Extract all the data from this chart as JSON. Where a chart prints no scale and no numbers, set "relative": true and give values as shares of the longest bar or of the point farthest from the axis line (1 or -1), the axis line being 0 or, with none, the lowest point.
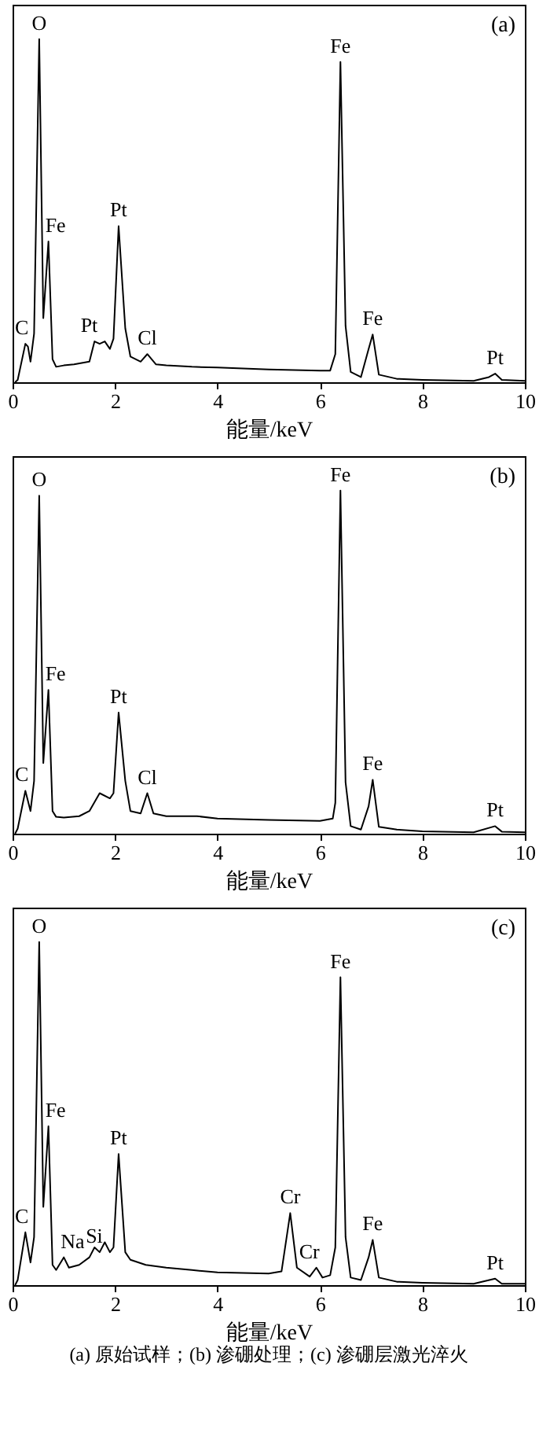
{
  "chart_data": [
    {
      "type": "line",
      "title": "(a)",
      "xlabel": "能量/keV",
      "relative": true,
      "xlim": [
        0,
        10
      ],
      "xticks": [
        0,
        2,
        4,
        6,
        8,
        10
      ],
      "tick_labels": "x",
      "x": [
        0.05,
        0.1,
        0.25,
        0.3,
        0.35,
        0.42,
        0.52,
        0.6,
        0.7,
        0.78,
        0.85,
        1.0,
        1.2,
        1.5,
        1.6,
        1.7,
        1.8,
        1.9,
        1.97,
        2.07,
        2.2,
        2.3,
        2.5,
        2.63,
        2.8,
        3.0,
        3.5,
        4.0,
        5.0,
        6.0,
        6.2,
        6.3,
        6.4,
        6.5,
        6.6,
        6.8,
        6.95,
        7.03,
        7.15,
        7.5,
        8.0,
        9.0,
        9.3,
        9.42,
        9.55,
        10
      ],
      "series": [
        {
          "color": "#000000",
          "values": [
            0,
            0.007,
            0.112,
            0.104,
            0.06,
            0.142,
            1,
            0.187,
            0.41,
            0.067,
            0.045,
            0.049,
            0.052,
            0.06,
            0.119,
            0.112,
            0.119,
            0.097,
            0.127,
            0.455,
            0.157,
            0.075,
            0.06,
            0.082,
            0.052,
            0.049,
            0.045,
            0.043,
            0.037,
            0.034,
            0.034,
            0.082,
            0.933,
            0.164,
            0.03,
            0.015,
            0.097,
            0.139,
            0.022,
            0.01,
            0.007,
            0.004,
            0.015,
            0.025,
            0.007,
            0.004
          ]
        }
      ],
      "annotations": [
        {
          "text": "C",
          "x": 0.25,
          "y": 0.112
        },
        {
          "text": "O",
          "x": 0.52,
          "y": 1
        },
        {
          "text": "Fe",
          "x": 0.7,
          "y": 0.41
        },
        {
          "text": "Pt",
          "x": 1.6,
          "y": 0.119
        },
        {
          "text": "Pt",
          "x": 2.07,
          "y": 0.455
        },
        {
          "text": "Cl",
          "x": 2.63,
          "y": 0.082
        },
        {
          "text": "Fe",
          "x": 6.4,
          "y": 0.933
        },
        {
          "text": "Fe",
          "x": 7.03,
          "y": 0.139
        },
        {
          "text": "Pt",
          "x": 9.42,
          "y": 0.025
        }
      ]
    },
    {
      "type": "line",
      "title": "(b)",
      "xlabel": "能量/keV",
      "relative": true,
      "xlim": [
        0,
        10
      ],
      "xticks": [
        0,
        2,
        4,
        6,
        8,
        10
      ],
      "tick_labels": "x",
      "x": [
        0.05,
        0.1,
        0.25,
        0.35,
        0.42,
        0.52,
        0.6,
        0.7,
        0.78,
        0.85,
        1.0,
        1.3,
        1.5,
        1.7,
        1.9,
        1.97,
        2.07,
        2.2,
        2.3,
        2.5,
        2.63,
        2.75,
        3.0,
        3.6,
        4.0,
        5.0,
        6.0,
        6.25,
        6.3,
        6.4,
        6.5,
        6.6,
        6.8,
        6.95,
        7.03,
        7.15,
        7.5,
        8.0,
        9.0,
        9.42,
        9.55,
        10
      ],
      "series": [
        {
          "color": "#000000",
          "values": [
            0,
            0.015,
            0.125,
            0.066,
            0.154,
            0.985,
            0.206,
            0.419,
            0.066,
            0.049,
            0.047,
            0.051,
            0.066,
            0.118,
            0.103,
            0.118,
            0.353,
            0.154,
            0.066,
            0.059,
            0.118,
            0.059,
            0.051,
            0.051,
            0.044,
            0.04,
            0.037,
            0.044,
            0.09,
            1,
            0.15,
            0.022,
            0.012,
            0.08,
            0.157,
            0.02,
            0.012,
            0.007,
            0.004,
            0.022,
            0.006,
            0.004
          ]
        }
      ],
      "annotations": [
        {
          "text": "C",
          "x": 0.25,
          "y": 0.125
        },
        {
          "text": "O",
          "x": 0.52,
          "y": 0.985
        },
        {
          "text": "Fe",
          "x": 0.7,
          "y": 0.419
        },
        {
          "text": "Pt",
          "x": 2.07,
          "y": 0.353
        },
        {
          "text": "Cl",
          "x": 2.63,
          "y": 0.118
        },
        {
          "text": "Fe",
          "x": 6.4,
          "y": 1
        },
        {
          "text": "Fe",
          "x": 7.03,
          "y": 0.157
        },
        {
          "text": "Pt",
          "x": 9.42,
          "y": 0.022
        }
      ]
    },
    {
      "type": "line",
      "title": "(c)",
      "xlabel": "能量/keV",
      "relative": true,
      "xlim": [
        0,
        10
      ],
      "xticks": [
        0,
        2,
        4,
        6,
        8,
        10
      ],
      "tick_labels": "x",
      "x": [
        0.05,
        0.1,
        0.25,
        0.35,
        0.42,
        0.52,
        0.6,
        0.7,
        0.78,
        0.85,
        1.0,
        1.1,
        1.3,
        1.5,
        1.6,
        1.7,
        1.8,
        1.9,
        1.97,
        2.07,
        2.2,
        2.3,
        2.6,
        3.0,
        3.5,
        4.0,
        5.0,
        5.25,
        5.42,
        5.55,
        5.8,
        5.93,
        6.05,
        6.2,
        6.3,
        6.4,
        6.5,
        6.6,
        6.8,
        6.95,
        7.03,
        7.15,
        7.5,
        8.0,
        9.0,
        9.42,
        9.55,
        10
      ],
      "series": [
        {
          "color": "#000000",
          "values": [
            0,
            0.015,
            0.154,
            0.066,
            0.14,
            1,
            0.228,
            0.463,
            0.059,
            0.044,
            0.081,
            0.051,
            0.059,
            0.081,
            0.11,
            0.096,
            0.125,
            0.096,
            0.11,
            0.382,
            0.096,
            0.074,
            0.059,
            0.051,
            0.044,
            0.037,
            0.034,
            0.04,
            0.21,
            0.051,
            0.025,
            0.051,
            0.022,
            0.029,
            0.11,
            0.897,
            0.14,
            0.022,
            0.015,
            0.081,
            0.132,
            0.022,
            0.01,
            0.007,
            0.004,
            0.019,
            0.004,
            0.004
          ]
        }
      ],
      "annotations": [
        {
          "text": "C",
          "x": 0.25,
          "y": 0.154
        },
        {
          "text": "O",
          "x": 0.52,
          "y": 1
        },
        {
          "text": "Fe",
          "x": 0.7,
          "y": 0.463
        },
        {
          "text": "Na",
          "x": 1.0,
          "y": 0.081
        },
        {
          "text": "Si",
          "x": 1.7,
          "y": 0.096
        },
        {
          "text": "Pt",
          "x": 2.07,
          "y": 0.382
        },
        {
          "text": "Cr",
          "x": 5.42,
          "y": 0.21
        },
        {
          "text": "Cr",
          "x": 5.93,
          "y": 0.051
        },
        {
          "text": "Fe",
          "x": 6.4,
          "y": 0.897
        },
        {
          "text": "Fe",
          "x": 7.03,
          "y": 0.132
        },
        {
          "text": "Pt",
          "x": 9.42,
          "y": 0.019
        },
        "(a) 原始试样；(b) 渗硼处理；(c) 渗硼层激光淬火"
      ]
    }
  ]
}
